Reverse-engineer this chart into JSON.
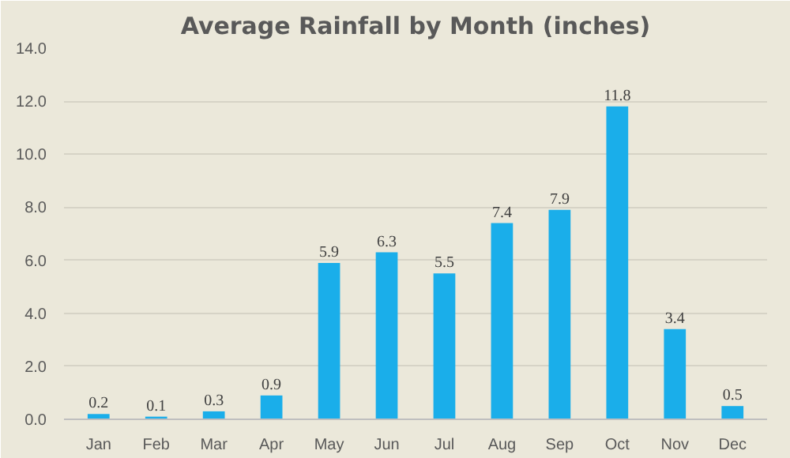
{
  "chart_data": {
    "type": "bar",
    "title": "Average Rainfall by Month (inches)",
    "categories": [
      "Jan",
      "Feb",
      "Mar",
      "Apr",
      "May",
      "Jun",
      "Jul",
      "Aug",
      "Sep",
      "Oct",
      "Nov",
      "Dec"
    ],
    "values": [
      0.2,
      0.1,
      0.3,
      0.9,
      5.9,
      6.3,
      5.5,
      7.4,
      7.9,
      11.8,
      3.4,
      0.5
    ],
    "color": "#1aaeea",
    "ylim": [
      0,
      14
    ],
    "yticks": [
      {
        "value": 0,
        "label": "0.0"
      },
      {
        "value": 2,
        "label": "2.0"
      },
      {
        "value": 4,
        "label": "4.0"
      },
      {
        "value": 6,
        "label": "6.0"
      },
      {
        "value": 8,
        "label": "8.0"
      },
      {
        "value": 10,
        "label": "10.0"
      },
      {
        "value": 12,
        "label": "12.0"
      },
      {
        "value": 14,
        "label": "14.0"
      }
    ],
    "grid": "y",
    "data_labels": true
  }
}
